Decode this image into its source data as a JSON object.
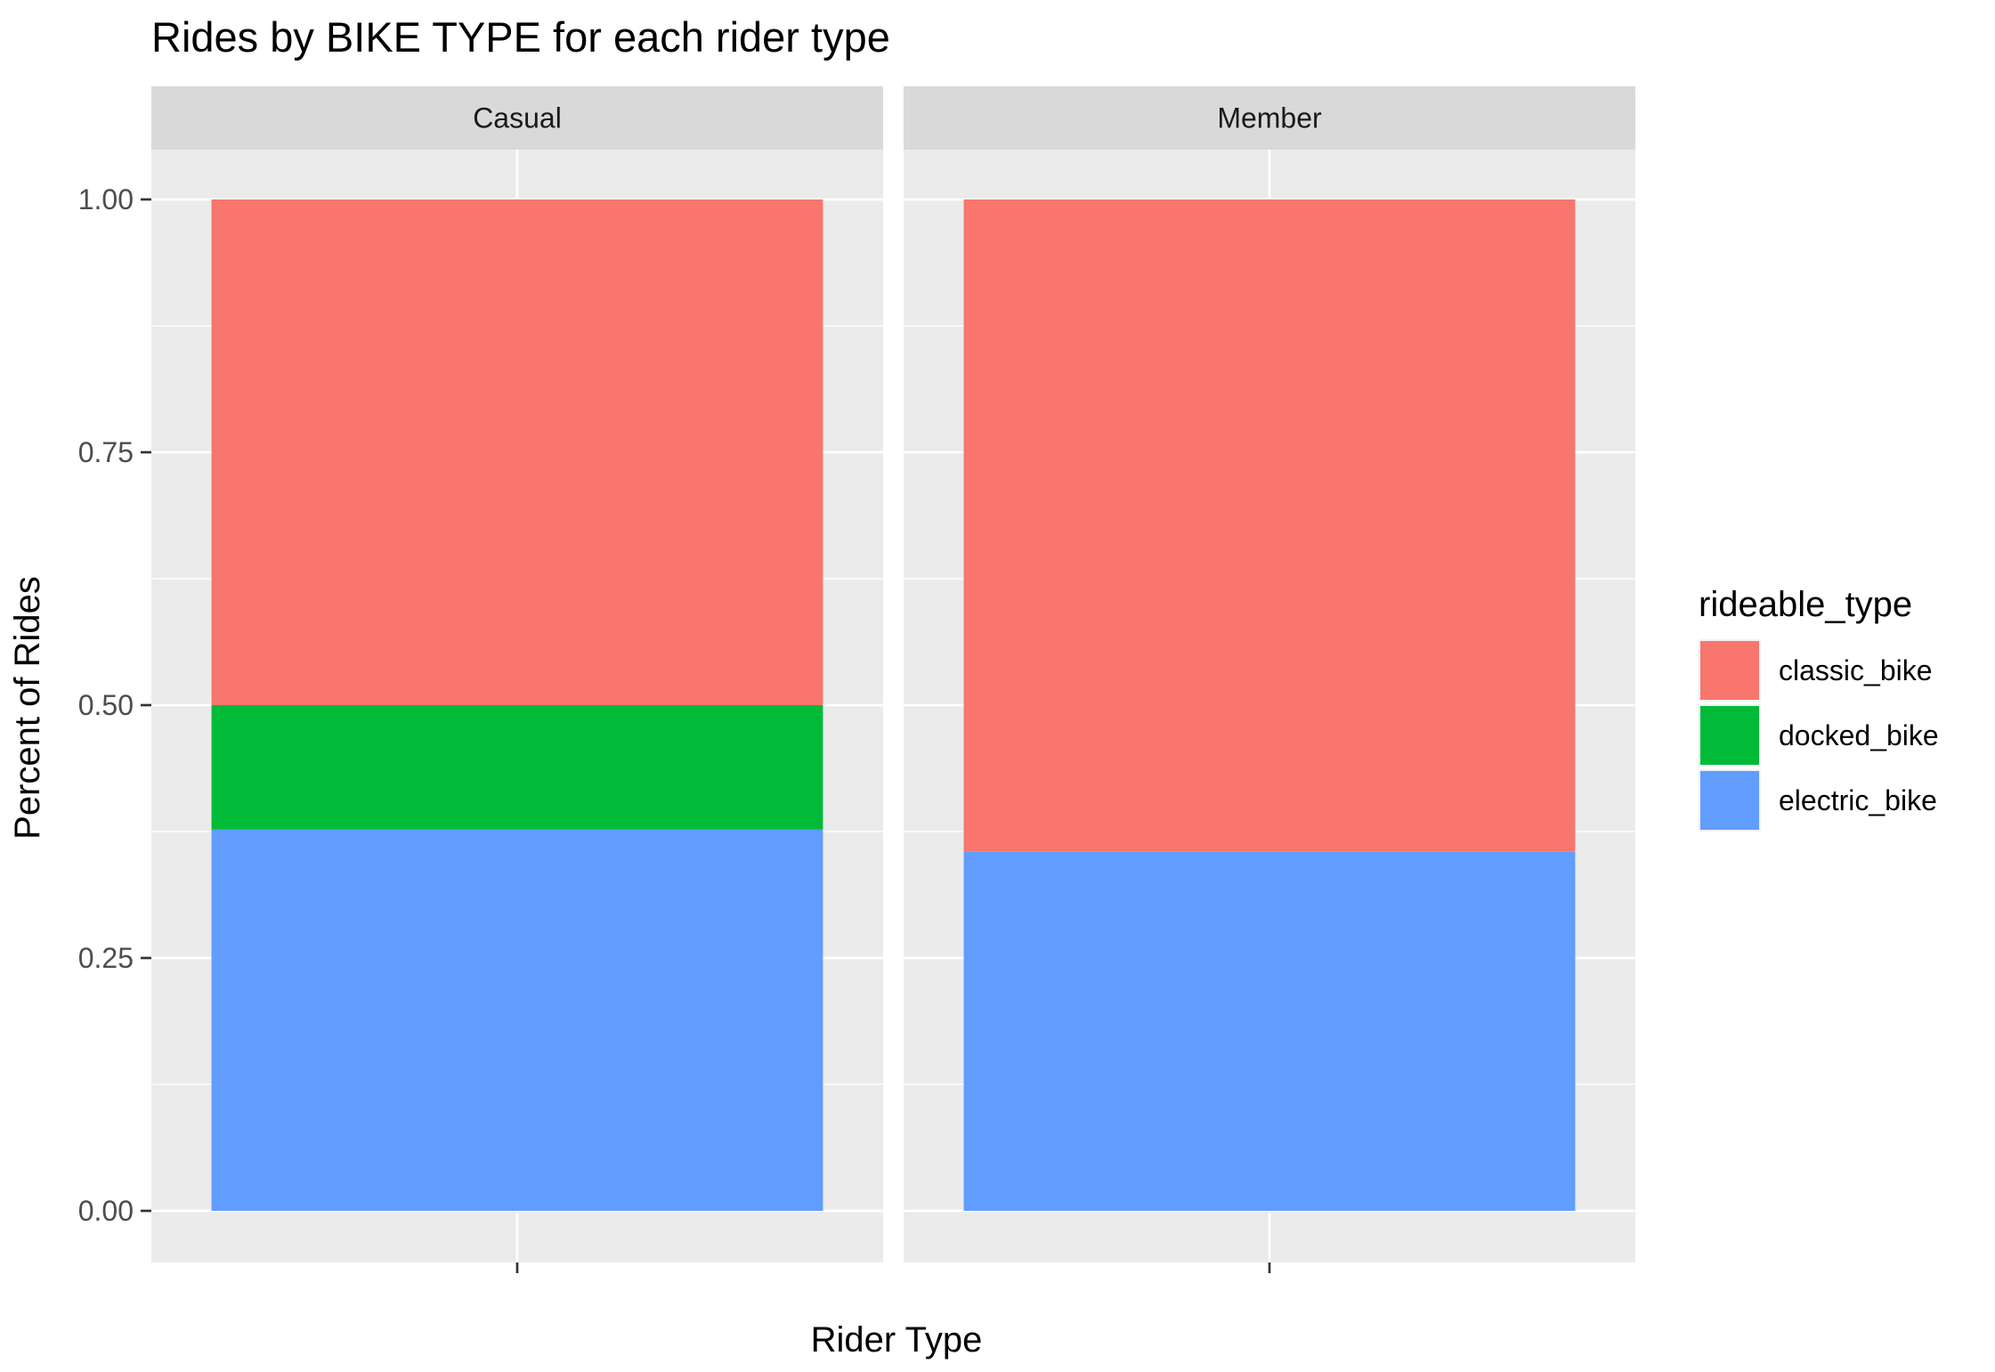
{
  "chart_data": {
    "type": "bar",
    "stacked": true,
    "title": "Rides by BIKE TYPE for each rider type",
    "xlabel": "Rider Type",
    "ylabel": "Percent of Rides",
    "ylim": [
      0,
      1
    ],
    "yticks": [
      "0.00",
      "0.25",
      "0.50",
      "0.75",
      "1.00"
    ],
    "facets": [
      "Casual",
      "Member"
    ],
    "series": [
      {
        "name": "classic_bike",
        "color": "#F8766D",
        "values": [
          0.5,
          0.645
        ]
      },
      {
        "name": "docked_bike",
        "color": "#00BA38",
        "values": [
          0.123,
          0.0
        ]
      },
      {
        "name": "electric_bike",
        "color": "#619CFF",
        "values": [
          0.377,
          0.355
        ]
      }
    ],
    "stack_order_bottom_to_top": [
      "electric_bike",
      "docked_bike",
      "classic_bike"
    ],
    "legend": {
      "title": "rideable_type",
      "position": "right"
    },
    "grid": true
  }
}
